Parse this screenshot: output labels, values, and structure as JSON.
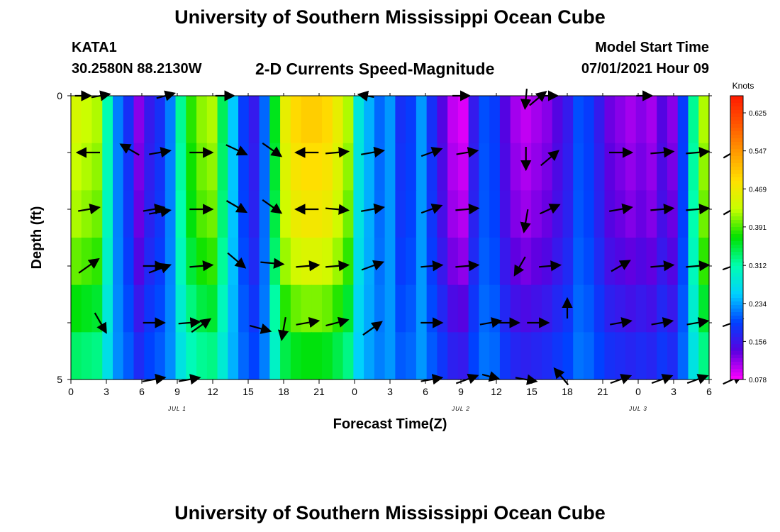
{
  "header": {
    "title": "University of Southern Mississippi Ocean Cube",
    "station": "KATA1",
    "coords": "30.2580N  88.2130W",
    "subtitle": "2-D Currents Speed-Magnitude",
    "start_label": "Model Start Time",
    "start_time": "07/01/2021 Hour 09"
  },
  "footer": {
    "title": "University of Southern Mississippi Ocean Cube"
  },
  "chart_data": {
    "type": "heatmap",
    "title": "2-D Currents Speed-Magnitude",
    "xlabel": "Forecast Time(Z)",
    "ylabel": "Depth (ft)",
    "x_ticks": [
      "0",
      "3",
      "6",
      "9",
      "12",
      "15",
      "18",
      "21",
      "0",
      "3",
      "6",
      "9",
      "12",
      "15",
      "18",
      "21",
      "0",
      "3",
      "6"
    ],
    "y_ticks": [
      "0",
      "5"
    ],
    "y_range": [
      0,
      5
    ],
    "date_labels": [
      {
        "text": "JUL 1",
        "tick": 3
      },
      {
        "text": "JUL 2",
        "tick": 11
      },
      {
        "text": "JUL 3",
        "tick": 16
      }
    ],
    "colorbar": {
      "title": "Knots",
      "ticks": [
        "0.625",
        "0.547",
        "0.469",
        "0.391",
        "0.312",
        "0.234",
        "0.156",
        "0.078"
      ],
      "colors": [
        "#ff1a00",
        "#ff5500",
        "#ff9a00",
        "#ffe000",
        "#c8ff00",
        "#00e000",
        "#00ffb0",
        "#00d0ff",
        "#0040ff",
        "#5a00e0",
        "#ff00ff"
      ]
    },
    "grid": false,
    "speed_columns": [
      0.44,
      0.43,
      0.42,
      0.31,
      0.22,
      0.18,
      0.12,
      0.16,
      0.18,
      0.22,
      0.32,
      0.38,
      0.41,
      0.42,
      0.34,
      0.25,
      0.19,
      0.16,
      0.21,
      0.36,
      0.46,
      0.49,
      0.5,
      0.5,
      0.49,
      0.46,
      0.42,
      0.28,
      0.24,
      0.21,
      0.23,
      0.18,
      0.19,
      0.23,
      0.18,
      0.14,
      0.1,
      0.09,
      0.16,
      0.2,
      0.19,
      0.14,
      0.11,
      0.1,
      0.11,
      0.12,
      0.14,
      0.16,
      0.2,
      0.19,
      0.16,
      0.13,
      0.12,
      0.11,
      0.12,
      0.11,
      0.14,
      0.12,
      0.19,
      0.32,
      0.42
    ],
    "depth_factors": [
      1.0,
      0.95,
      0.9,
      0.8,
      0.65,
      0.5
    ],
    "vectors": [
      {
        "t": 1,
        "d": 0.0,
        "angle": 0,
        "len": 22
      },
      {
        "t": 2.5,
        "d": 0.0,
        "angle": -10,
        "len": 26
      },
      {
        "t": 8,
        "d": 0.0,
        "angle": -15,
        "len": 26
      },
      {
        "t": 13,
        "d": 0.0,
        "angle": 0,
        "len": 26
      },
      {
        "t": 25,
        "d": 0.0,
        "angle": 190,
        "len": 22
      },
      {
        "t": 33,
        "d": 0.0,
        "angle": 0,
        "len": 24
      },
      {
        "t": 38.5,
        "d": 0.05,
        "angle": 95,
        "len": 28
      },
      {
        "t": 39.5,
        "d": 0.05,
        "angle": -40,
        "len": 30
      },
      {
        "t": 40.5,
        "d": 0.0,
        "angle": 0,
        "len": 22
      },
      {
        "t": 48.5,
        "d": 0.0,
        "angle": 0,
        "len": 22
      },
      {
        "t": 1.5,
        "d": 1.0,
        "angle": 180,
        "len": 32
      },
      {
        "t": 5,
        "d": 0.95,
        "angle": 210,
        "len": 30
      },
      {
        "t": 7.5,
        "d": 1.0,
        "angle": -10,
        "len": 30
      },
      {
        "t": 11,
        "d": 1.0,
        "angle": 0,
        "len": 32
      },
      {
        "t": 14,
        "d": 0.95,
        "angle": 25,
        "len": 32
      },
      {
        "t": 17,
        "d": 0.95,
        "angle": 35,
        "len": 32
      },
      {
        "t": 20,
        "d": 1.0,
        "angle": 180,
        "len": 32
      },
      {
        "t": 22.5,
        "d": 1.0,
        "angle": -5,
        "len": 32
      },
      {
        "t": 25.5,
        "d": 1.0,
        "angle": -10,
        "len": 32
      },
      {
        "t": 30.5,
        "d": 1.0,
        "angle": -20,
        "len": 30
      },
      {
        "t": 33.5,
        "d": 1.0,
        "angle": -10,
        "len": 30
      },
      {
        "t": 38.5,
        "d": 1.1,
        "angle": 90,
        "len": 32
      },
      {
        "t": 40.5,
        "d": 1.1,
        "angle": -40,
        "len": 32
      },
      {
        "t": 46.5,
        "d": 1.0,
        "angle": 0,
        "len": 32
      },
      {
        "t": 50,
        "d": 1.0,
        "angle": -5,
        "len": 32
      },
      {
        "t": 53,
        "d": 1.0,
        "angle": -5,
        "len": 32
      },
      {
        "t": 56,
        "d": 1.0,
        "angle": -30,
        "len": 30
      },
      {
        "t": 1.5,
        "d": 2.0,
        "angle": -10,
        "len": 30
      },
      {
        "t": 7,
        "d": 2.0,
        "angle": -10,
        "len": 30
      },
      {
        "t": 7.5,
        "d": 2.05,
        "angle": -10,
        "len": 30
      },
      {
        "t": 11,
        "d": 2.0,
        "angle": 0,
        "len": 32
      },
      {
        "t": 14,
        "d": 1.95,
        "angle": 30,
        "len": 32
      },
      {
        "t": 17,
        "d": 1.95,
        "angle": 35,
        "len": 32
      },
      {
        "t": 20,
        "d": 2.0,
        "angle": 180,
        "len": 32
      },
      {
        "t": 22.5,
        "d": 2.0,
        "angle": 5,
        "len": 32
      },
      {
        "t": 25.5,
        "d": 2.0,
        "angle": -10,
        "len": 32
      },
      {
        "t": 30.5,
        "d": 2.0,
        "angle": -20,
        "len": 30
      },
      {
        "t": 33.5,
        "d": 2.0,
        "angle": -5,
        "len": 32
      },
      {
        "t": 38.5,
        "d": 2.2,
        "angle": 100,
        "len": 32
      },
      {
        "t": 40.5,
        "d": 2.0,
        "angle": -25,
        "len": 30
      },
      {
        "t": 46.5,
        "d": 2.0,
        "angle": -10,
        "len": 32
      },
      {
        "t": 50,
        "d": 2.0,
        "angle": -5,
        "len": 32
      },
      {
        "t": 53,
        "d": 2.0,
        "angle": -5,
        "len": 32
      },
      {
        "t": 56,
        "d": 2.0,
        "angle": -30,
        "len": 30
      },
      {
        "t": 1.5,
        "d": 3.0,
        "angle": -35,
        "len": 34
      },
      {
        "t": 7,
        "d": 3.0,
        "angle": 0,
        "len": 30
      },
      {
        "t": 7.5,
        "d": 3.05,
        "angle": -20,
        "len": 32
      },
      {
        "t": 11,
        "d": 3.0,
        "angle": -5,
        "len": 32
      },
      {
        "t": 14,
        "d": 2.9,
        "angle": 40,
        "len": 32
      },
      {
        "t": 17,
        "d": 2.95,
        "angle": 5,
        "len": 32
      },
      {
        "t": 20,
        "d": 3.0,
        "angle": -5,
        "len": 32
      },
      {
        "t": 22.5,
        "d": 3.0,
        "angle": -5,
        "len": 32
      },
      {
        "t": 25.5,
        "d": 3.0,
        "angle": -20,
        "len": 32
      },
      {
        "t": 30.5,
        "d": 3.0,
        "angle": -5,
        "len": 30
      },
      {
        "t": 33.5,
        "d": 3.0,
        "angle": -5,
        "len": 32
      },
      {
        "t": 38.0,
        "d": 3.0,
        "angle": 120,
        "len": 30
      },
      {
        "t": 40.5,
        "d": 3.0,
        "angle": -5,
        "len": 30
      },
      {
        "t": 46.5,
        "d": 3.0,
        "angle": -30,
        "len": 30
      },
      {
        "t": 50,
        "d": 3.0,
        "angle": -5,
        "len": 32
      },
      {
        "t": 53,
        "d": 3.0,
        "angle": -5,
        "len": 32
      },
      {
        "t": 56,
        "d": 3.0,
        "angle": -20,
        "len": 30
      },
      {
        "t": 2.5,
        "d": 4.0,
        "angle": 60,
        "len": 32
      },
      {
        "t": 7,
        "d": 4.0,
        "angle": 0,
        "len": 30
      },
      {
        "t": 10,
        "d": 4.0,
        "angle": -5,
        "len": 30
      },
      {
        "t": 11,
        "d": 4.05,
        "angle": -35,
        "len": 32
      },
      {
        "t": 16,
        "d": 4.1,
        "angle": 15,
        "len": 30
      },
      {
        "t": 18,
        "d": 4.1,
        "angle": 100,
        "len": 32
      },
      {
        "t": 20,
        "d": 4.0,
        "angle": -10,
        "len": 32
      },
      {
        "t": 22.5,
        "d": 4.0,
        "angle": -15,
        "len": 32
      },
      {
        "t": 25.5,
        "d": 4.1,
        "angle": -35,
        "len": 32
      },
      {
        "t": 30.5,
        "d": 4.0,
        "angle": 0,
        "len": 30
      },
      {
        "t": 35.5,
        "d": 4.0,
        "angle": -10,
        "len": 30
      },
      {
        "t": 37,
        "d": 4.0,
        "angle": 0,
        "len": 30
      },
      {
        "t": 39.5,
        "d": 4.0,
        "angle": 0,
        "len": 30
      },
      {
        "t": 42,
        "d": 3.75,
        "angle": -90,
        "len": 28
      },
      {
        "t": 46.5,
        "d": 4.0,
        "angle": -10,
        "len": 30
      },
      {
        "t": 50,
        "d": 4.0,
        "angle": -10,
        "len": 30
      },
      {
        "t": 53,
        "d": 4.0,
        "angle": -10,
        "len": 30
      },
      {
        "t": 56,
        "d": 4.0,
        "angle": -20,
        "len": 30
      },
      {
        "t": 7,
        "d": 5.0,
        "angle": -10,
        "len": 32
      },
      {
        "t": 10,
        "d": 5.0,
        "angle": -10,
        "len": 30
      },
      {
        "t": 30.5,
        "d": 5.0,
        "angle": -10,
        "len": 30
      },
      {
        "t": 33.5,
        "d": 5.0,
        "angle": -20,
        "len": 32
      },
      {
        "t": 35.5,
        "d": 4.95,
        "angle": 15,
        "len": 24
      },
      {
        "t": 38.5,
        "d": 5.0,
        "angle": 10,
        "len": 30
      },
      {
        "t": 41.5,
        "d": 4.95,
        "angle": -130,
        "len": 30
      },
      {
        "t": 46.5,
        "d": 5.0,
        "angle": -20,
        "len": 30
      },
      {
        "t": 50,
        "d": 5.0,
        "angle": -20,
        "len": 30
      },
      {
        "t": 53,
        "d": 5.0,
        "angle": -20,
        "len": 30
      },
      {
        "t": 56,
        "d": 5.0,
        "angle": -25,
        "len": 30
      }
    ]
  }
}
